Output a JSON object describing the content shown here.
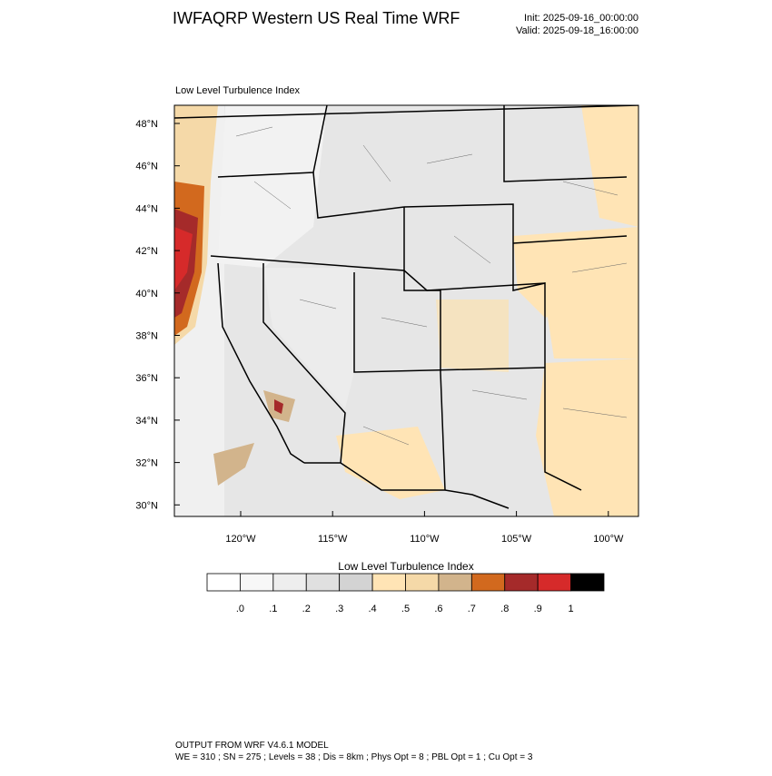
{
  "header": {
    "title": "IWFAQRP Western US Real Time WRF",
    "init": "Init: 2025-09-16_00:00:00",
    "valid": "Valid: 2025-09-18_16:00:00"
  },
  "map": {
    "label": "Low Level Turbulence Index",
    "lat_labels": [
      "48°N",
      "46°N",
      "44°N",
      "42°N",
      "40°N",
      "38°N",
      "36°N",
      "34°N",
      "32°N",
      "30°N"
    ],
    "lon_labels": [
      "120°W",
      "115°W",
      "110°W",
      "105°W",
      "100°W"
    ]
  },
  "colorbar": {
    "title": "Low Level Turbulence Index",
    "labels": [
      ".0",
      ".1",
      ".2",
      ".3",
      ".4",
      ".5",
      ".6",
      ".7",
      ".8",
      ".9",
      "1"
    ],
    "colors": [
      "#ffffff",
      "#f7f7f7",
      "#eeeeee",
      "#e0e0e0",
      "#d3d3d3",
      "#ffe4b5",
      "#f5d9a8",
      "#d2b48c",
      "#d2691e",
      "#a52a2a",
      "#d62a2a",
      "#000000"
    ]
  },
  "footer": {
    "line1": "OUTPUT FROM WRF V4.6.1 MODEL",
    "line2": "WE = 310 ; SN = 275 ; Levels = 38 ; Dis = 8km ; Phys Opt = 8 ; PBL Opt = 1 ; Cu Opt = 3"
  }
}
